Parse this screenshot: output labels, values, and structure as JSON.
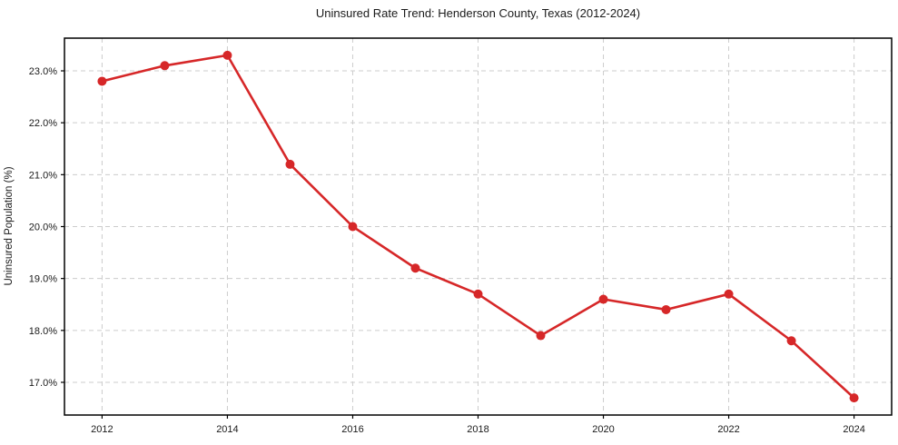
{
  "chart_data": {
    "type": "line",
    "title": "Uninsured Rate Trend: Henderson County, Texas (2012-2024)",
    "xlabel": "",
    "ylabel": "Uninsured Population (%)",
    "x": [
      2012,
      2013,
      2014,
      2015,
      2016,
      2017,
      2018,
      2019,
      2020,
      2021,
      2022,
      2023,
      2024
    ],
    "values": [
      22.8,
      23.1,
      23.3,
      21.2,
      20.0,
      19.2,
      18.7,
      17.9,
      18.6,
      18.4,
      18.7,
      17.8,
      16.7
    ],
    "xlim": [
      2011.4,
      2024.6
    ],
    "ylim": [
      16.37,
      23.63
    ],
    "xticks": [
      2012,
      2014,
      2016,
      2018,
      2020,
      2022,
      2024
    ],
    "xtick_labels": [
      "2012",
      "2014",
      "2016",
      "2018",
      "2020",
      "2022",
      "2024"
    ],
    "yticks": [
      17,
      18,
      19,
      20,
      21,
      22,
      23
    ],
    "ytick_labels": [
      "17.0%",
      "18.0%",
      "19.0%",
      "20.0%",
      "21.0%",
      "22.0%",
      "23.0%"
    ],
    "grid": true,
    "legend": "none",
    "line_color": "#d62728",
    "grid_color": "#cccccc",
    "axis_color": "#000000",
    "text_color": "#1a1a1a",
    "background": "#ffffff"
  }
}
